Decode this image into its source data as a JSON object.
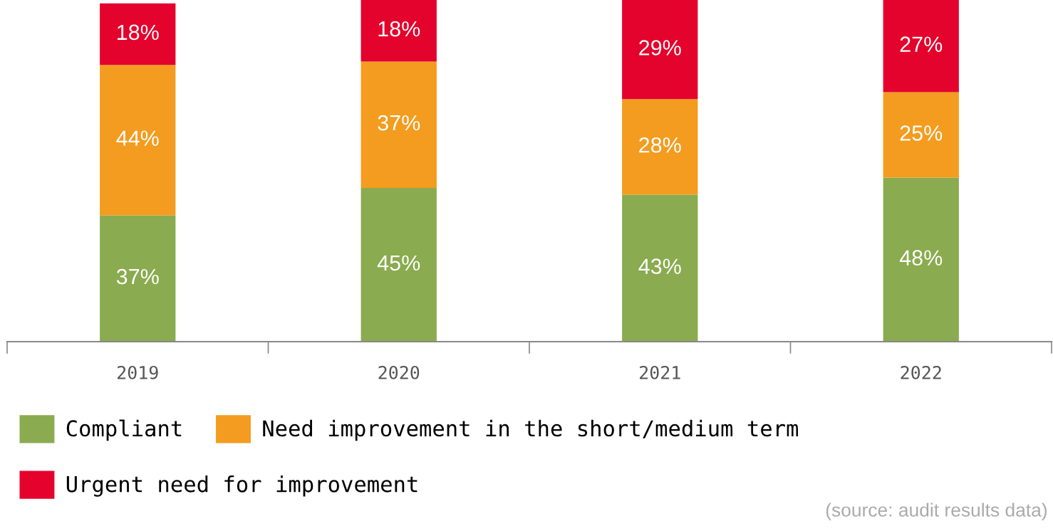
{
  "chart_data": {
    "type": "bar",
    "stacked": true,
    "categories": [
      "2019",
      "2020",
      "2021",
      "2022"
    ],
    "series": [
      {
        "name": "Compliant",
        "color": "#8aab4f",
        "values": [
          37,
          45,
          43,
          48
        ],
        "value_labels": [
          "37%",
          "45%",
          "43%",
          "48%"
        ]
      },
      {
        "name": "Need improvement in the short/medium term",
        "color": "#f39c1f",
        "values": [
          44,
          37,
          28,
          25
        ],
        "value_labels": [
          "44%",
          "37%",
          "28%",
          "25%"
        ]
      },
      {
        "name": "Urgent need for improvement",
        "color": "#e4032c",
        "values": [
          18,
          18,
          29,
          27
        ],
        "value_labels": [
          "18%",
          "18%",
          "29%",
          "27%"
        ]
      }
    ],
    "legend": "bottom",
    "grid": false,
    "tick_labels": "x",
    "annotations": [
      "(source: audit results data)"
    ]
  }
}
